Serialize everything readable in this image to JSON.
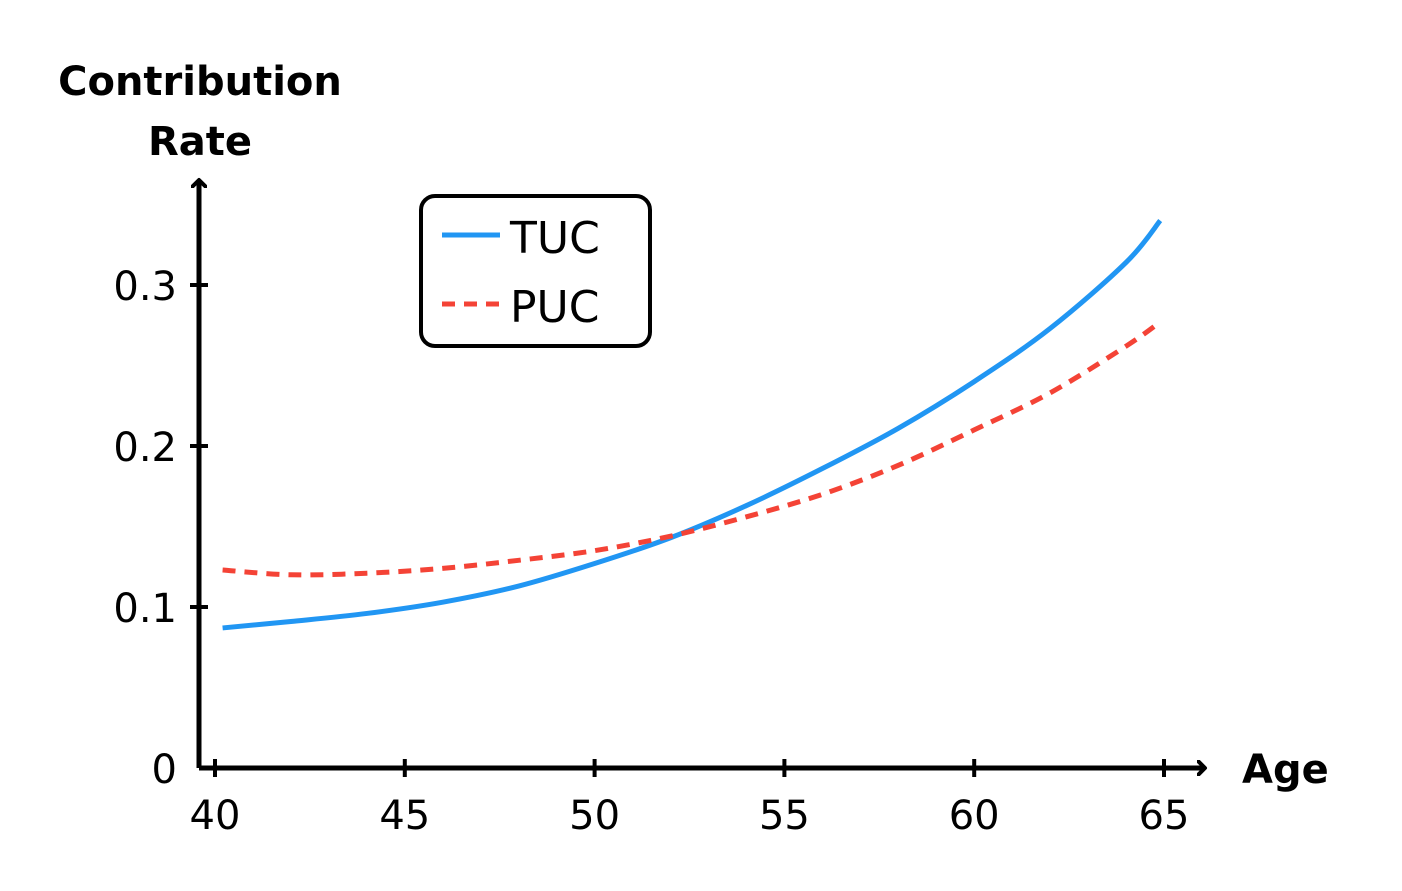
{
  "chart_data": {
    "type": "line",
    "title": "",
    "xlabel": "Age",
    "ylabel": [
      "Contribution",
      "Rate"
    ],
    "xlim": [
      40,
      65
    ],
    "ylim": [
      0,
      0.35
    ],
    "xticks": [
      40,
      45,
      50,
      55,
      60,
      65
    ],
    "xtick_labels": [
      "40",
      "45",
      "50",
      "55",
      "60",
      "65"
    ],
    "yticks": [
      0,
      0.1,
      0.2,
      0.3
    ],
    "ytick_labels": [
      "0",
      "0.1",
      "0.2",
      "0.3"
    ],
    "grid": false,
    "legend_position": "top-left",
    "series": [
      {
        "name": "TUC",
        "color": "#2196F3",
        "style": "solid",
        "x": [
          40.2,
          42,
          44,
          46,
          48,
          50,
          52,
          54,
          56,
          58,
          60,
          62,
          64,
          64.9
        ],
        "y": [
          0.087,
          0.091,
          0.096,
          0.103,
          0.113,
          0.127,
          0.143,
          0.163,
          0.186,
          0.211,
          0.24,
          0.273,
          0.314,
          0.34
        ]
      },
      {
        "name": "PUC",
        "color": "#F44336",
        "style": "dashed",
        "x": [
          40.2,
          42,
          44,
          46,
          48,
          50,
          52,
          54,
          56,
          58,
          60,
          62,
          64,
          64.9
        ],
        "y": [
          0.123,
          0.12,
          0.121,
          0.124,
          0.129,
          0.135,
          0.144,
          0.156,
          0.17,
          0.188,
          0.21,
          0.233,
          0.262,
          0.277
        ]
      }
    ]
  }
}
